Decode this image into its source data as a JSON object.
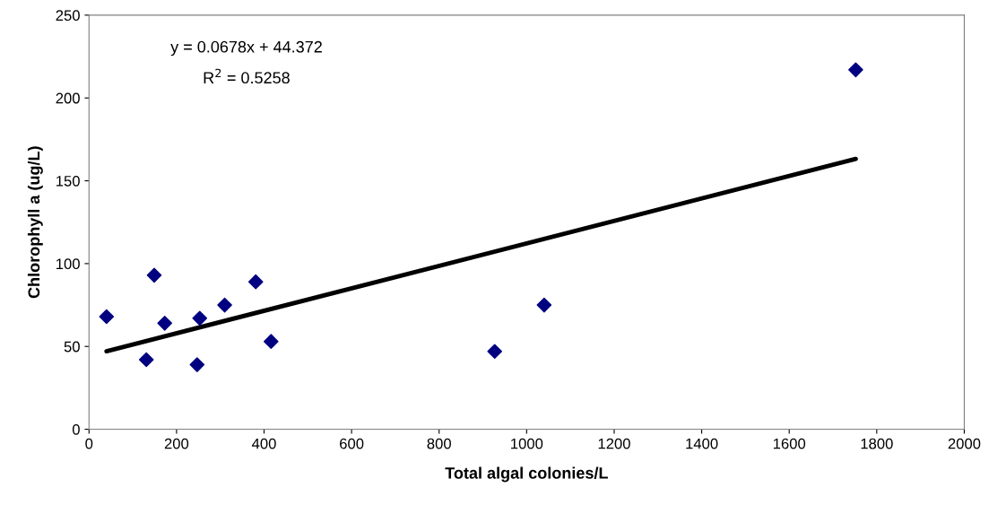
{
  "chart_data": {
    "type": "scatter",
    "xlabel": "Total algal colonies/L",
    "ylabel": "Chlorophyll a (ug/L)",
    "series": [
      {
        "color": "#000080",
        "marker": "diamond",
        "x": [
          40,
          131,
          149,
          173,
          247,
          253,
          310,
          381,
          416,
          927,
          1040,
          1752
        ],
        "values": [
          68,
          42,
          93,
          64,
          39,
          67,
          75,
          89,
          53,
          47,
          75,
          217
        ]
      },
      {
        "type": "line",
        "color": "#000000",
        "x": [
          40,
          1752
        ],
        "values": [
          47.1,
          163.2
        ]
      }
    ],
    "xlim": [
      0,
      2000
    ],
    "xticks": [
      0,
      200,
      400,
      600,
      800,
      1000,
      1200,
      1400,
      1600,
      1800,
      2000
    ],
    "ylim": [
      0,
      250
    ],
    "yticks": [
      0,
      50,
      100,
      150,
      200,
      250
    ],
    "grid": false,
    "legend": false,
    "annotations": [
      "y = 0.0678x + 44.372",
      "R$^{2}$ = 0.5258"
    ]
  }
}
